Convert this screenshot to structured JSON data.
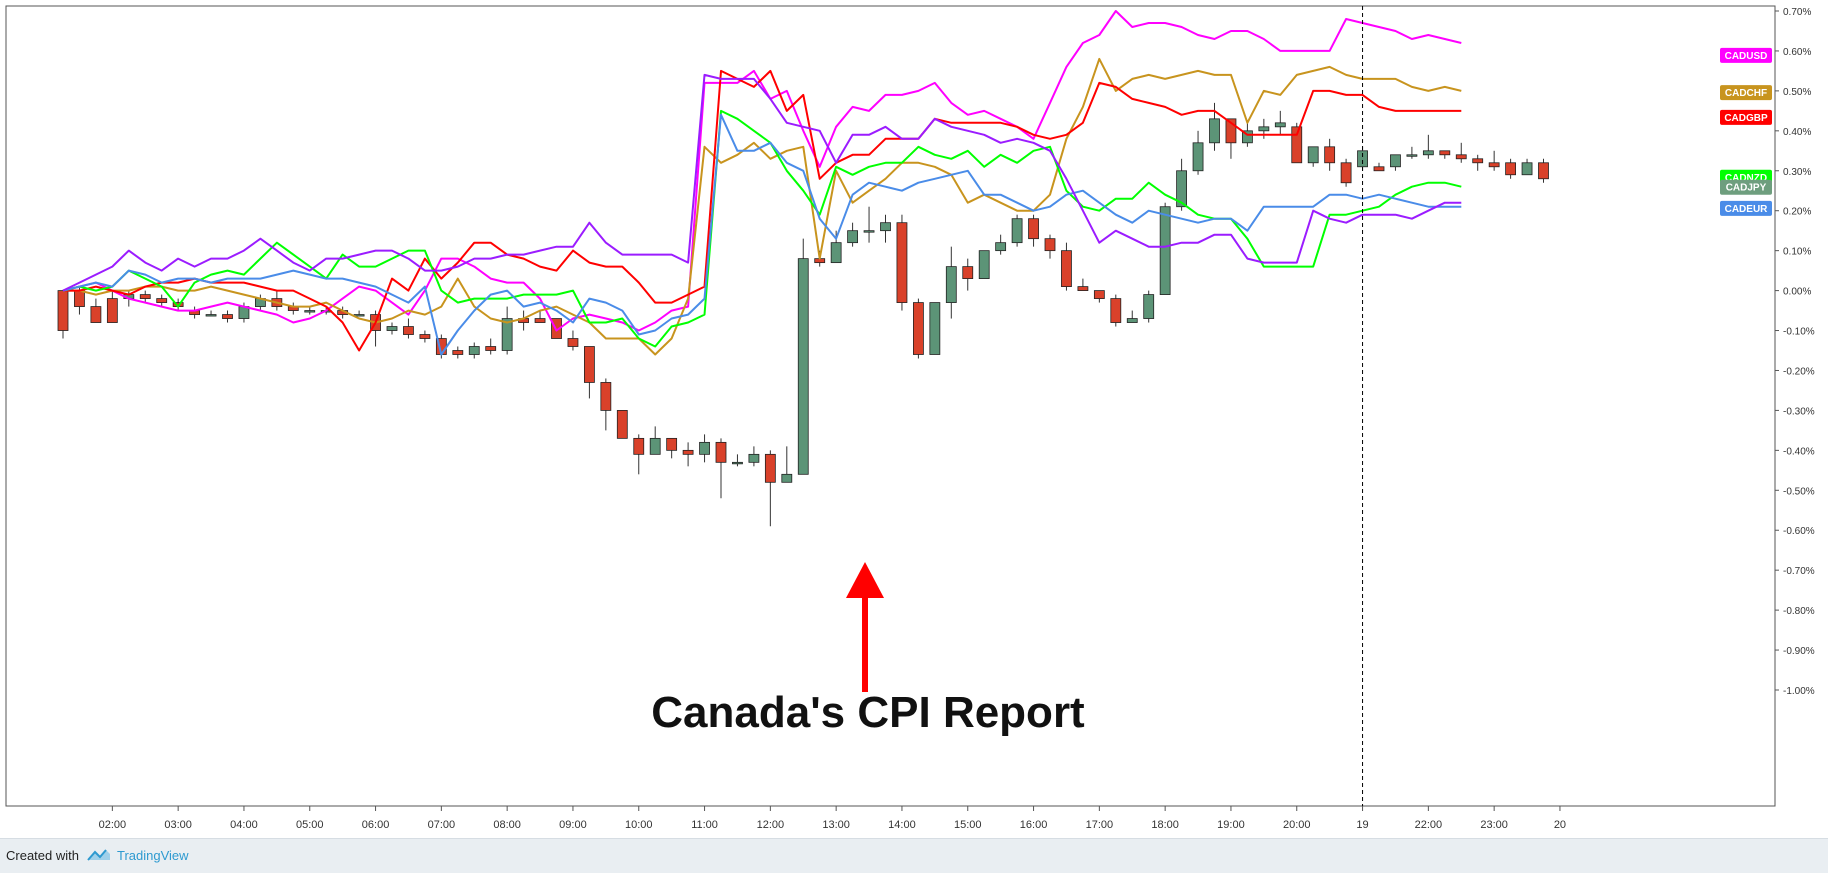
{
  "footer": {
    "created_with": "Created with",
    "brand": "TradingView"
  },
  "annotation": {
    "text": "Canada's CPI Report",
    "arrow_color": "#ff0000"
  },
  "chart_data": {
    "type": "line",
    "title": "",
    "xlabel": "",
    "ylabel": "",
    "ylim": [
      -1.0,
      0.7
    ],
    "grid": false,
    "legend": "right-edge labels",
    "x_tick_labels": [
      "02:00",
      "03:00",
      "04:00",
      "05:00",
      "06:00",
      "07:00",
      "08:00",
      "09:00",
      "10:00",
      "11:00",
      "12:00",
      "13:00",
      "14:00",
      "15:00",
      "16:00",
      "17:00",
      "18:00",
      "19:00",
      "20:00",
      "19",
      "22:00",
      "23:00",
      "20"
    ],
    "y_tick_labels": [
      "0.70%",
      "0.60%",
      "0.50%",
      "0.40%",
      "0.30%",
      "0.20%",
      "0.10%",
      "0.00%",
      "-0.10%",
      "-0.20%",
      "-0.30%",
      "-0.40%",
      "-0.50%",
      "-0.60%",
      "-0.70%",
      "-0.80%",
      "-0.90%",
      "-1.00%"
    ],
    "y_tick_values": [
      0.7,
      0.6,
      0.5,
      0.4,
      0.3,
      0.2,
      0.1,
      0.0,
      -0.1,
      -0.2,
      -0.3,
      -0.4,
      -0.5,
      -0.6,
      -0.7,
      -0.8,
      -0.9,
      -1.0
    ],
    "x_start": 1.25,
    "x_step": 0.25,
    "session_break_x": 21.0,
    "series": [
      {
        "name": "CADUSD",
        "color": "#ff00ff",
        "values": [
          0,
          0.01,
          0.02,
          0.0,
          -0.02,
          -0.03,
          -0.04,
          -0.05,
          -0.05,
          -0.04,
          -0.03,
          -0.04,
          -0.05,
          -0.06,
          -0.08,
          -0.07,
          -0.05,
          -0.02,
          0.01,
          0.0,
          -0.03,
          -0.06,
          0.0,
          0.08,
          0.08,
          0.06,
          0.03,
          0.02,
          0.02,
          -0.02,
          -0.1,
          -0.07,
          -0.06,
          -0.07,
          -0.08,
          -0.1,
          -0.08,
          -0.05,
          -0.04,
          0.52,
          0.52,
          0.52,
          0.55,
          0.48,
          0.5,
          0.4,
          0.31,
          0.41,
          0.46,
          0.45,
          0.49,
          0.49,
          0.5,
          0.52,
          0.47,
          0.44,
          0.45,
          0.43,
          0.41,
          0.38,
          0.47,
          0.56,
          0.62,
          0.64,
          0.7,
          0.66,
          0.67,
          0.67,
          0.66,
          0.64,
          0.63,
          0.65,
          0.65,
          0.63,
          0.6,
          0.6,
          0.6,
          0.6,
          0.68,
          0.67,
          0.66,
          0.65,
          0.63,
          0.64,
          0.63,
          0.62
        ]
      },
      {
        "name": "CADCHF",
        "color": "#c8941e",
        "values": [
          0,
          0.0,
          -0.01,
          0.0,
          0.0,
          0.01,
          0.01,
          0.0,
          0.0,
          0.01,
          0.0,
          -0.01,
          -0.02,
          -0.03,
          -0.04,
          -0.04,
          -0.03,
          -0.05,
          -0.07,
          -0.08,
          -0.07,
          -0.05,
          -0.06,
          -0.04,
          0.03,
          -0.04,
          -0.07,
          -0.08,
          -0.07,
          -0.05,
          -0.04,
          -0.06,
          -0.08,
          -0.12,
          -0.12,
          -0.12,
          -0.16,
          -0.12,
          -0.02,
          0.36,
          0.32,
          0.34,
          0.37,
          0.33,
          0.35,
          0.36,
          0.08,
          0.3,
          0.22,
          0.25,
          0.28,
          0.32,
          0.32,
          0.31,
          0.29,
          0.22,
          0.24,
          0.22,
          0.2,
          0.2,
          0.24,
          0.38,
          0.46,
          0.58,
          0.5,
          0.53,
          0.54,
          0.53,
          0.54,
          0.55,
          0.54,
          0.54,
          0.42,
          0.5,
          0.49,
          0.54,
          0.55,
          0.56,
          0.54,
          0.53,
          0.53,
          0.53,
          0.51,
          0.5,
          0.51,
          0.5
        ]
      },
      {
        "name": "CADGBP",
        "color": "#ff0000",
        "values": [
          0,
          0.0,
          0.01,
          0.0,
          -0.01,
          0.01,
          0.02,
          0.02,
          0.03,
          0.02,
          0.02,
          0.02,
          0.01,
          0.0,
          0.0,
          -0.02,
          -0.04,
          -0.08,
          -0.15,
          -0.08,
          0.03,
          0.0,
          0.08,
          0.03,
          0.07,
          0.12,
          0.12,
          0.09,
          0.08,
          0.06,
          0.05,
          0.1,
          0.07,
          0.06,
          0.06,
          0.02,
          -0.03,
          -0.03,
          -0.01,
          0.01,
          0.55,
          0.53,
          0.51,
          0.55,
          0.45,
          0.49,
          0.28,
          0.32,
          0.34,
          0.34,
          0.38,
          0.38,
          0.38,
          0.43,
          0.42,
          0.42,
          0.42,
          0.42,
          0.41,
          0.39,
          0.38,
          0.39,
          0.42,
          0.52,
          0.51,
          0.48,
          0.47,
          0.46,
          0.44,
          0.45,
          0.45,
          0.42,
          0.39,
          0.39,
          0.39,
          0.39,
          0.5,
          0.5,
          0.49,
          0.49,
          0.46,
          0.45,
          0.45,
          0.45,
          0.45,
          0.45
        ]
      },
      {
        "name": "CADNZD",
        "color": "#00ff00",
        "values": [
          0,
          0.01,
          0.0,
          0.01,
          0.05,
          0.03,
          0.01,
          -0.04,
          0.02,
          0.04,
          0.05,
          0.04,
          0.08,
          0.12,
          0.09,
          0.06,
          0.03,
          0.09,
          0.06,
          0.06,
          0.08,
          0.1,
          0.1,
          0.0,
          -0.03,
          -0.02,
          -0.02,
          -0.02,
          -0.01,
          -0.01,
          -0.01,
          0.0,
          -0.08,
          -0.08,
          -0.07,
          -0.12,
          -0.14,
          -0.09,
          -0.08,
          -0.06,
          0.45,
          0.43,
          0.4,
          0.37,
          0.3,
          0.25,
          0.19,
          0.31,
          0.29,
          0.31,
          0.32,
          0.32,
          0.36,
          0.34,
          0.33,
          0.35,
          0.31,
          0.34,
          0.32,
          0.35,
          0.36,
          0.25,
          0.21,
          0.2,
          0.23,
          0.23,
          0.27,
          0.24,
          0.22,
          0.19,
          0.18,
          0.18,
          0.13,
          0.06,
          0.06,
          0.06,
          0.06,
          0.19,
          0.19,
          0.2,
          0.21,
          0.24,
          0.26,
          0.27,
          0.27,
          0.26
        ]
      },
      {
        "name": "CADEUR",
        "color": "#4a8ce8",
        "values": [
          0,
          0.01,
          0.02,
          0.01,
          0.05,
          0.04,
          0.02,
          0.03,
          0.03,
          0.02,
          0.03,
          0.03,
          0.03,
          0.04,
          0.05,
          0.04,
          0.03,
          0.03,
          0.02,
          0.01,
          -0.01,
          -0.03,
          0.01,
          -0.16,
          -0.1,
          -0.05,
          -0.01,
          0.0,
          -0.04,
          -0.03,
          -0.05,
          -0.08,
          -0.02,
          -0.03,
          -0.05,
          -0.11,
          -0.1,
          -0.07,
          -0.06,
          -0.02,
          0.44,
          0.35,
          0.35,
          0.37,
          0.32,
          0.3,
          0.18,
          0.13,
          0.24,
          0.27,
          0.26,
          0.25,
          0.27,
          0.28,
          0.29,
          0.3,
          0.24,
          0.24,
          0.22,
          0.2,
          0.21,
          0.24,
          0.25,
          0.22,
          0.19,
          0.17,
          0.2,
          0.19,
          0.18,
          0.17,
          0.18,
          0.18,
          0.15,
          0.21,
          0.21,
          0.21,
          0.21,
          0.24,
          0.24,
          0.23,
          0.24,
          0.23,
          0.22,
          0.21,
          0.21,
          0.21
        ]
      },
      {
        "name": "CADJPY",
        "color": "#6e9e7e",
        "values": []
      },
      {
        "name": "Purple",
        "color": "#9b1cff",
        "values": [
          0,
          0.02,
          0.04,
          0.06,
          0.1,
          0.07,
          0.05,
          0.08,
          0.06,
          0.08,
          0.08,
          0.1,
          0.13,
          0.1,
          0.07,
          0.05,
          0.08,
          0.08,
          0.09,
          0.1,
          0.1,
          0.08,
          0.05,
          0.05,
          0.06,
          0.08,
          0.08,
          0.09,
          0.09,
          0.1,
          0.11,
          0.11,
          0.17,
          0.12,
          0.09,
          0.09,
          0.09,
          0.09,
          0.07,
          0.54,
          0.53,
          0.53,
          0.53,
          0.48,
          0.42,
          0.41,
          0.4,
          0.32,
          0.39,
          0.39,
          0.41,
          0.38,
          0.38,
          0.43,
          0.41,
          0.4,
          0.39,
          0.37,
          0.38,
          0.37,
          0.35,
          0.28,
          0.2,
          0.12,
          0.15,
          0.13,
          0.11,
          0.11,
          0.12,
          0.12,
          0.14,
          0.14,
          0.08,
          0.07,
          0.07,
          0.07,
          0.2,
          0.18,
          0.17,
          0.19,
          0.19,
          0.19,
          0.18,
          0.2,
          0.22,
          0.22
        ]
      }
    ],
    "candles": [
      [
        1.25,
        0.0,
        -0.1,
        0.0,
        -0.12
      ],
      [
        1.5,
        0.0,
        -0.04,
        0.01,
        -0.06
      ],
      [
        1.75,
        -0.04,
        -0.08,
        -0.02,
        -0.08
      ],
      [
        2.0,
        -0.02,
        -0.08,
        0.0,
        -0.08
      ],
      [
        2.25,
        -0.02,
        -0.01,
        0.0,
        -0.04
      ],
      [
        2.5,
        -0.01,
        -0.02,
        0.0,
        -0.03
      ],
      [
        2.75,
        -0.02,
        -0.03,
        -0.01,
        -0.04
      ],
      [
        3.0,
        -0.03,
        -0.04,
        -0.02,
        -0.05
      ],
      [
        3.25,
        -0.05,
        -0.06,
        -0.04,
        -0.07
      ],
      [
        3.5,
        -0.06,
        -0.06,
        -0.05,
        -0.06
      ],
      [
        3.75,
        -0.06,
        -0.07,
        -0.05,
        -0.08
      ],
      [
        4.0,
        -0.07,
        -0.04,
        -0.03,
        -0.08
      ],
      [
        4.25,
        -0.04,
        -0.02,
        -0.01,
        -0.05
      ],
      [
        4.5,
        -0.02,
        -0.04,
        0.0,
        -0.05
      ],
      [
        4.75,
        -0.04,
        -0.05,
        -0.03,
        -0.06
      ],
      [
        5.0,
        -0.05,
        -0.05,
        -0.04,
        -0.06
      ],
      [
        5.25,
        -0.05,
        -0.05,
        -0.04,
        -0.06
      ],
      [
        5.5,
        -0.05,
        -0.06,
        -0.04,
        -0.07
      ],
      [
        5.75,
        -0.06,
        -0.06,
        -0.05,
        -0.06
      ],
      [
        6.0,
        -0.06,
        -0.1,
        -0.05,
        -0.14
      ],
      [
        6.25,
        -0.1,
        -0.09,
        -0.08,
        -0.11
      ],
      [
        6.5,
        -0.09,
        -0.11,
        -0.07,
        -0.12
      ],
      [
        6.75,
        -0.11,
        -0.12,
        -0.1,
        -0.13
      ],
      [
        7.0,
        -0.12,
        -0.16,
        -0.11,
        -0.17
      ],
      [
        7.25,
        -0.15,
        -0.16,
        -0.14,
        -0.17
      ],
      [
        7.5,
        -0.16,
        -0.14,
        -0.13,
        -0.17
      ],
      [
        7.75,
        -0.14,
        -0.15,
        -0.12,
        -0.16
      ],
      [
        8.0,
        -0.15,
        -0.07,
        -0.04,
        -0.16
      ],
      [
        8.25,
        -0.07,
        -0.08,
        -0.05,
        -0.1
      ],
      [
        8.5,
        -0.07,
        -0.08,
        -0.05,
        -0.08
      ],
      [
        8.75,
        -0.07,
        -0.12,
        -0.07,
        -0.12
      ],
      [
        9.0,
        -0.12,
        -0.14,
        -0.1,
        -0.15
      ],
      [
        9.25,
        -0.14,
        -0.23,
        -0.14,
        -0.27
      ],
      [
        9.5,
        -0.23,
        -0.3,
        -0.22,
        -0.35
      ],
      [
        9.75,
        -0.3,
        -0.37,
        -0.3,
        -0.37
      ],
      [
        10.0,
        -0.37,
        -0.41,
        -0.36,
        -0.46
      ],
      [
        10.25,
        -0.41,
        -0.37,
        -0.34,
        -0.41
      ],
      [
        10.5,
        -0.37,
        -0.4,
        -0.37,
        -0.42
      ],
      [
        10.75,
        -0.4,
        -0.41,
        -0.38,
        -0.44
      ],
      [
        11.0,
        -0.41,
        -0.38,
        -0.36,
        -0.43
      ],
      [
        11.25,
        -0.38,
        -0.43,
        -0.37,
        -0.52
      ],
      [
        11.5,
        -0.43,
        -0.43,
        -0.41,
        -0.44
      ],
      [
        11.75,
        -0.43,
        -0.41,
        -0.39,
        -0.44
      ],
      [
        12.0,
        -0.41,
        -0.48,
        -0.4,
        -0.59
      ],
      [
        12.25,
        -0.48,
        -0.46,
        -0.39,
        -0.48
      ],
      [
        12.5,
        -0.46,
        0.08,
        0.13,
        -0.46
      ],
      [
        12.75,
        0.08,
        0.07,
        0.1,
        0.06
      ],
      [
        13.0,
        0.07,
        0.12,
        0.15,
        0.08
      ],
      [
        13.25,
        0.12,
        0.15,
        0.17,
        0.11
      ],
      [
        13.5,
        0.15,
        0.15,
        0.21,
        0.12
      ],
      [
        13.75,
        0.15,
        0.17,
        0.19,
        0.12
      ],
      [
        14.0,
        0.17,
        -0.03,
        0.19,
        -0.05
      ],
      [
        14.25,
        -0.03,
        -0.16,
        -0.02,
        -0.17
      ],
      [
        14.5,
        -0.16,
        -0.03,
        -0.03,
        -0.16
      ],
      [
        14.75,
        -0.03,
        0.06,
        0.11,
        -0.07
      ],
      [
        15.0,
        0.06,
        0.03,
        0.08,
        0.0
      ],
      [
        15.25,
        0.03,
        0.1,
        0.1,
        0.03
      ],
      [
        15.5,
        0.1,
        0.12,
        0.14,
        0.09
      ],
      [
        15.75,
        0.12,
        0.18,
        0.19,
        0.11
      ],
      [
        16.0,
        0.18,
        0.13,
        0.19,
        0.11
      ],
      [
        16.25,
        0.13,
        0.1,
        0.14,
        0.08
      ],
      [
        16.5,
        0.1,
        0.01,
        0.12,
        0.0
      ],
      [
        16.75,
        0.01,
        0.0,
        0.03,
        0.0
      ],
      [
        17.0,
        0.0,
        -0.02,
        0.0,
        -0.03
      ],
      [
        17.25,
        -0.02,
        -0.08,
        -0.01,
        -0.09
      ],
      [
        17.5,
        -0.08,
        -0.07,
        -0.05,
        -0.08
      ],
      [
        17.75,
        -0.07,
        -0.01,
        0.0,
        -0.08
      ],
      [
        18.0,
        -0.01,
        0.21,
        0.22,
        -0.01
      ],
      [
        18.25,
        0.21,
        0.3,
        0.33,
        0.2
      ],
      [
        18.5,
        0.3,
        0.37,
        0.4,
        0.29
      ],
      [
        18.75,
        0.37,
        0.43,
        0.47,
        0.35
      ],
      [
        19.0,
        0.43,
        0.37,
        0.43,
        0.33
      ],
      [
        19.25,
        0.37,
        0.4,
        0.42,
        0.36
      ],
      [
        19.5,
        0.4,
        0.41,
        0.43,
        0.38
      ],
      [
        19.75,
        0.41,
        0.42,
        0.45,
        0.39
      ],
      [
        20.0,
        0.41,
        0.32,
        0.42,
        0.32
      ],
      [
        20.25,
        0.32,
        0.36,
        0.36,
        0.31
      ],
      [
        20.5,
        0.36,
        0.32,
        0.38,
        0.3
      ],
      [
        20.75,
        0.32,
        0.27,
        0.33,
        0.26
      ],
      [
        21.0,
        0.31,
        0.35,
        0.36,
        0.3
      ],
      [
        21.25,
        0.31,
        0.3,
        0.32,
        0.3
      ],
      [
        21.5,
        0.31,
        0.34,
        0.34,
        0.3
      ],
      [
        21.75,
        0.34,
        0.34,
        0.36,
        0.33
      ],
      [
        22.0,
        0.34,
        0.35,
        0.39,
        0.33
      ],
      [
        22.25,
        0.35,
        0.34,
        0.35,
        0.33
      ],
      [
        22.5,
        0.34,
        0.33,
        0.37,
        0.32
      ],
      [
        22.75,
        0.33,
        0.32,
        0.34,
        0.3
      ],
      [
        23.0,
        0.32,
        0.31,
        0.35,
        0.3
      ],
      [
        23.25,
        0.32,
        0.29,
        0.33,
        0.28
      ],
      [
        23.5,
        0.29,
        0.32,
        0.33,
        0.29
      ],
      [
        23.75,
        0.32,
        0.28,
        0.33,
        0.27
      ]
    ],
    "end_labels": [
      {
        "name": "CADUSD",
        "color": "#ff00ff",
        "value": 0.59
      },
      {
        "name": "CADCHF",
        "color": "#c8941e",
        "value": 0.497
      },
      {
        "name": "CADGBP",
        "color": "#ff0000",
        "value": 0.435
      },
      {
        "name": "CADNZD",
        "color": "#00ff00",
        "value": 0.285
      },
      {
        "name": "CADJPY",
        "color": "#6e9e7e",
        "value": 0.26
      },
      {
        "name": "CADEUR",
        "color": "#4a8ce8",
        "value": 0.207
      }
    ]
  }
}
